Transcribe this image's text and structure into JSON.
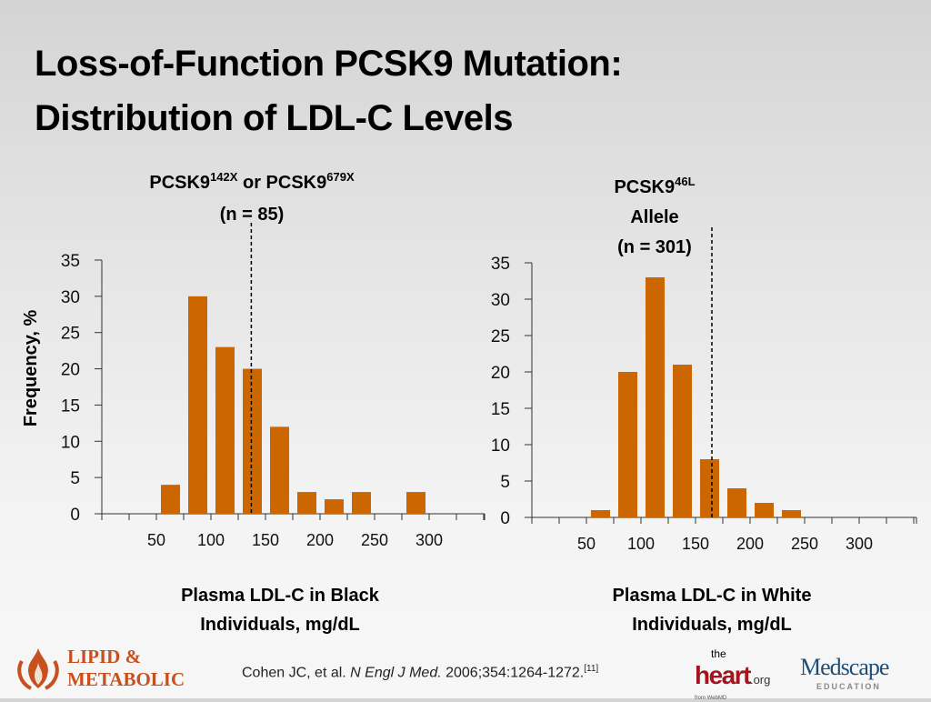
{
  "slide": {
    "title_lines": [
      "Loss-of-Function PCSK9 Mutation:",
      "Distribution of LDL-C Levels"
    ],
    "citation": {
      "authors": "Cohen JC, et al. ",
      "journal": "N Engl J Med.",
      "rest": " 2006;354:1264-1272.",
      "ref": "[11]"
    },
    "logos": {
      "lipid_metabolic": [
        "LIPID &",
        "METABOLIC"
      ],
      "theheart": {
        "the": "the",
        "heart": "heart",
        "org": ".org",
        "from": "from WebMD"
      },
      "medscape": {
        "name": "Medscape",
        "sub": "EDUCATION"
      }
    },
    "colors": {
      "bar": "#cc6600",
      "axis": "#333333",
      "dashed_line": "#000000"
    }
  },
  "chart_data": [
    {
      "type": "bar",
      "header_lines": [
        {
          "parts": [
            {
              "t": "PCSK9"
            },
            {
              "t": "142X",
              "sup": true
            },
            {
              "t": " or PCSK9"
            },
            {
              "t": "679X",
              "sup": true
            }
          ]
        },
        {
          "parts": [
            {
              "t": "(n = 85)"
            }
          ]
        }
      ],
      "ylabel": "Frequency, %",
      "xlabel_lines": [
        "Plasma LDL-C in Black",
        "Individuals, mg/dL"
      ],
      "ylim": [
        0,
        35
      ],
      "yticks": [
        0,
        5,
        10,
        15,
        20,
        25,
        30,
        35
      ],
      "xlim": [
        0,
        350
      ],
      "xticks_minor_step": 25,
      "xtick_labels": [
        50,
        100,
        150,
        200,
        250,
        300
      ],
      "bin_width": 25,
      "bins_start": [
        50,
        75,
        100,
        125,
        150,
        175,
        200,
        225,
        250,
        275
      ],
      "values": [
        4,
        30,
        23,
        20,
        12,
        3,
        2,
        3,
        0,
        3
      ],
      "dashed_line_x": 137
    },
    {
      "type": "bar",
      "header_lines": [
        {
          "parts": [
            {
              "t": "PCSK9"
            },
            {
              "t": "46L",
              "sup": true
            }
          ]
        },
        {
          "parts": [
            {
              "t": "Allele"
            }
          ]
        },
        {
          "parts": [
            {
              "t": "(n = 301)"
            }
          ]
        }
      ],
      "ylabel": "",
      "xlabel_lines": [
        "Plasma LDL-C in White",
        "Individuals, mg/dL"
      ],
      "ylim": [
        0,
        35
      ],
      "yticks": [
        0,
        5,
        10,
        15,
        20,
        25,
        30,
        35
      ],
      "xlim": [
        0,
        350
      ],
      "xticks_minor_step": 25,
      "xtick_labels": [
        50,
        100,
        150,
        200,
        250,
        300
      ],
      "bin_width": 25,
      "bins_start": [
        50,
        75,
        100,
        125,
        150,
        175,
        200,
        225
      ],
      "values": [
        1,
        20,
        33,
        21,
        8,
        4,
        2,
        1
      ],
      "dashed_line_x": 165
    }
  ]
}
